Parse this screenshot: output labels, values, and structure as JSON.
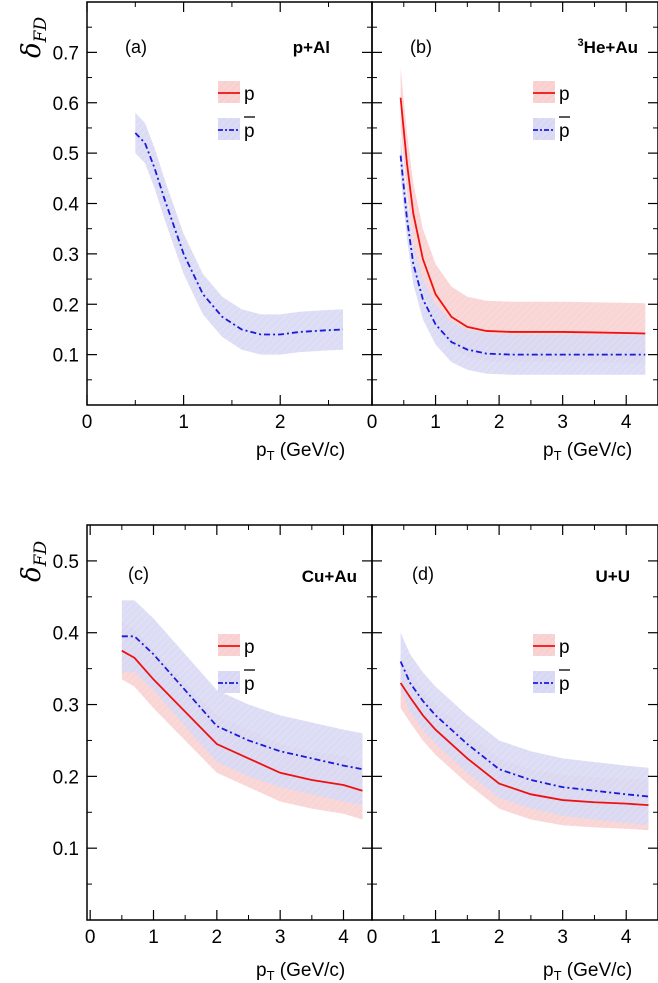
{
  "figure": {
    "ylabel_main": "δ",
    "ylabel_sub": "FD",
    "xlabel_main": "p",
    "xlabel_sub": "T",
    "xlabel_unit": " (GeV/c)"
  },
  "colors": {
    "p": "#ee1111",
    "pbar": "#1a1adc",
    "p_band": "#f8d0d0",
    "pbar_band": "#d8d8f4"
  },
  "chart_data": [
    {
      "type": "line",
      "panel": "(a)",
      "system": "p+Al",
      "system_sup": "",
      "xlim": [
        0,
        2.95
      ],
      "ylim": [
        0,
        0.8
      ],
      "xticks": [
        "0",
        "1",
        "2"
      ],
      "yticks": [
        "0.1",
        "0.2",
        "0.3",
        "0.4",
        "0.5",
        "0.6",
        "0.7"
      ],
      "legend": [
        {
          "key": "p",
          "label": "p"
        },
        {
          "key": "pbar",
          "label": "p"
        }
      ],
      "series": [
        {
          "name": "p",
          "key": "pbar",
          "style": "dashdot",
          "x": [
            0.5,
            0.6,
            0.7,
            0.8,
            1.0,
            1.2,
            1.4,
            1.6,
            1.8,
            2.0,
            2.2,
            2.45,
            2.65
          ],
          "y": [
            0.54,
            0.52,
            0.47,
            0.41,
            0.3,
            0.22,
            0.175,
            0.15,
            0.14,
            0.14,
            0.145,
            0.148,
            0.15
          ],
          "band": 0.04
        }
      ]
    },
    {
      "type": "line",
      "panel": "(b)",
      "system": "He+Au",
      "system_sup": "3",
      "xlim": [
        0,
        4.5
      ],
      "ylim": [
        0,
        0.8
      ],
      "xticks": [
        "0",
        "1",
        "2",
        "3",
        "4"
      ],
      "yticks": [
        "0.1",
        "0.2",
        "0.3",
        "0.4",
        "0.5",
        "0.6",
        "0.7"
      ],
      "legend": [
        {
          "key": "p",
          "label": "p"
        },
        {
          "key": "pbar",
          "label": "p"
        }
      ],
      "series": [
        {
          "name": "p",
          "key": "p",
          "style": "solid",
          "x": [
            0.45,
            0.55,
            0.65,
            0.8,
            1.0,
            1.25,
            1.5,
            1.8,
            2.2,
            3.0,
            3.5,
            4.3
          ],
          "y": [
            0.61,
            0.48,
            0.38,
            0.29,
            0.22,
            0.175,
            0.155,
            0.147,
            0.145,
            0.145,
            0.144,
            0.142
          ],
          "band": 0.06
        },
        {
          "name": "p",
          "key": "pbar",
          "style": "dashdot",
          "x": [
            0.45,
            0.55,
            0.65,
            0.8,
            1.0,
            1.25,
            1.5,
            1.8,
            2.2,
            3.0,
            3.5,
            4.3
          ],
          "y": [
            0.495,
            0.37,
            0.28,
            0.21,
            0.16,
            0.125,
            0.11,
            0.102,
            0.1,
            0.1,
            0.1,
            0.1
          ],
          "band": 0.04
        }
      ]
    },
    {
      "type": "line",
      "panel": "(c)",
      "system": "Cu+Au",
      "system_sup": "",
      "xlim": [
        -0.05,
        4.45
      ],
      "ylim": [
        0,
        0.55
      ],
      "xticks": [
        "0",
        "1",
        "2",
        "3",
        "4"
      ],
      "yticks": [
        "0.1",
        "0.2",
        "0.3",
        "0.4",
        "0.5"
      ],
      "legend": [
        {
          "key": "p",
          "label": "p"
        },
        {
          "key": "pbar",
          "label": "p"
        }
      ],
      "series": [
        {
          "name": "p",
          "key": "p",
          "style": "solid",
          "x": [
            0.5,
            0.7,
            1.0,
            1.5,
            2.0,
            2.5,
            3.0,
            3.5,
            4.0,
            4.3
          ],
          "y": [
            0.375,
            0.365,
            0.335,
            0.29,
            0.245,
            0.225,
            0.205,
            0.195,
            0.188,
            0.18
          ],
          "band": 0.04
        },
        {
          "name": "p",
          "key": "pbar",
          "style": "dashdot",
          "x": [
            0.5,
            0.7,
            1.0,
            1.5,
            2.0,
            2.5,
            3.0,
            3.5,
            4.0,
            4.3
          ],
          "y": [
            0.395,
            0.395,
            0.37,
            0.32,
            0.27,
            0.25,
            0.235,
            0.225,
            0.215,
            0.21
          ],
          "band": 0.05
        }
      ]
    },
    {
      "type": "line",
      "panel": "(d)",
      "system": "U+U",
      "system_sup": "",
      "xlim": [
        0,
        4.5
      ],
      "ylim": [
        0,
        0.55
      ],
      "xticks": [
        "0",
        "1",
        "2",
        "3",
        "4"
      ],
      "yticks": [
        "0.1",
        "0.2",
        "0.3",
        "0.4",
        "0.5"
      ],
      "legend": [
        {
          "key": "p",
          "label": "p"
        },
        {
          "key": "pbar",
          "label": "p"
        }
      ],
      "series": [
        {
          "name": "p",
          "key": "p",
          "style": "solid",
          "x": [
            0.45,
            0.6,
            0.8,
            1.0,
            1.5,
            2.0,
            2.5,
            3.0,
            3.5,
            4.0,
            4.35
          ],
          "y": [
            0.33,
            0.31,
            0.285,
            0.265,
            0.225,
            0.19,
            0.175,
            0.167,
            0.164,
            0.162,
            0.16
          ],
          "band": 0.035
        },
        {
          "name": "p",
          "key": "pbar",
          "style": "dashdot",
          "x": [
            0.45,
            0.6,
            0.8,
            1.0,
            1.5,
            2.0,
            2.5,
            3.0,
            3.5,
            4.0,
            4.35
          ],
          "y": [
            0.36,
            0.33,
            0.305,
            0.285,
            0.245,
            0.21,
            0.195,
            0.185,
            0.18,
            0.175,
            0.172
          ],
          "band": 0.04
        }
      ]
    }
  ]
}
